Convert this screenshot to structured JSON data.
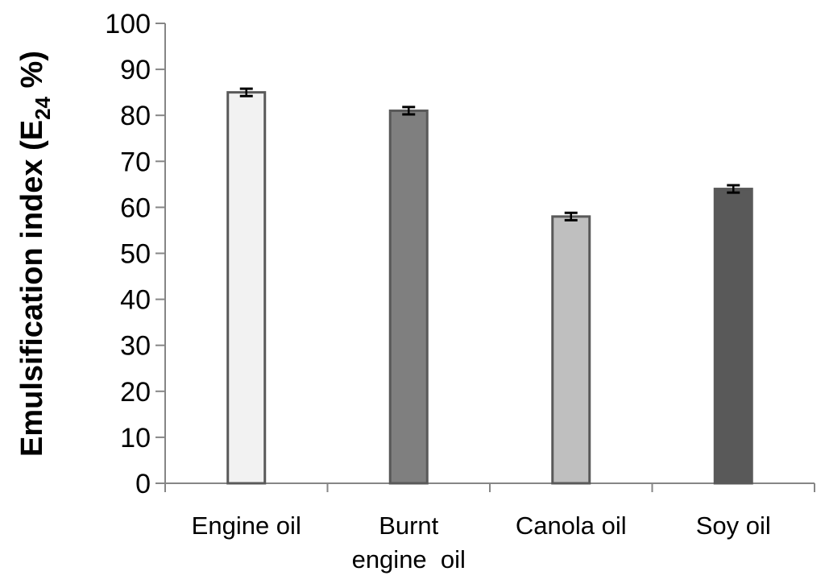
{
  "chart_data": {
    "type": "bar",
    "ylabel": {
      "before": "Emulsification index (E",
      "subscript": "24",
      "after": " %)"
    },
    "ylim": [
      0,
      100
    ],
    "yticks": [
      "0",
      "10",
      "20",
      "30",
      "40",
      "50",
      "60",
      "70",
      "80",
      "90",
      "100"
    ],
    "categories": [
      [
        "Engine oil"
      ],
      [
        "Burnt",
        "engine  oil"
      ],
      [
        "Canola oil"
      ],
      [
        "Soy oil"
      ]
    ],
    "values": [
      85,
      81,
      58,
      64
    ],
    "errors": [
      0.8,
      0.8,
      0.8,
      0.8
    ],
    "bar_colors": [
      "#f2f2f2",
      "#7f7f7f",
      "#bfbfbf",
      "#595959"
    ],
    "bar_edge_color": "#595959",
    "grid": false,
    "legend": "none"
  }
}
